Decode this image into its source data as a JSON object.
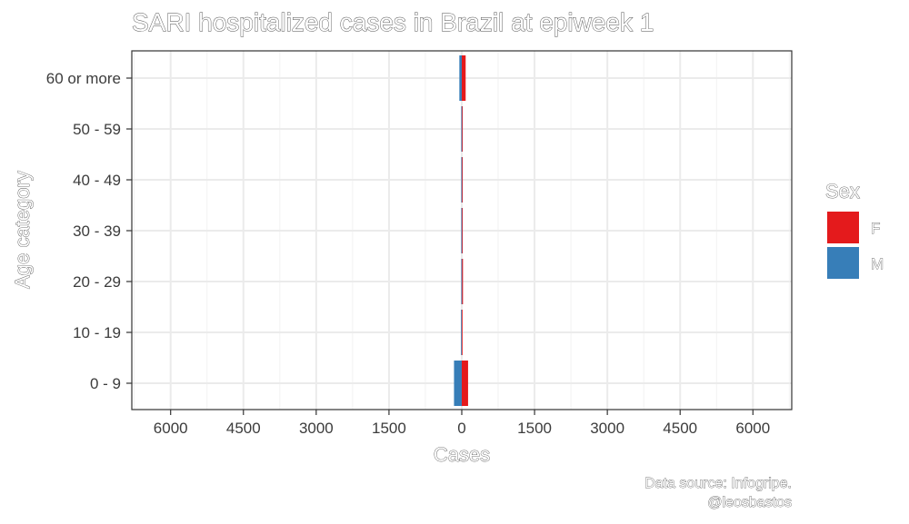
{
  "chart_data": {
    "type": "bar",
    "orientation": "horizontal-pyramid",
    "title": "SARI hospitalized cases in Brazil at epiweek 1",
    "xlabel": "Cases",
    "ylabel": "Age category",
    "categories": [
      "0 - 9",
      "10 - 19",
      "20 - 29",
      "30 - 39",
      "40 - 49",
      "50 - 59",
      "60 or more"
    ],
    "series": [
      {
        "name": "F",
        "color": "#E41A1C",
        "direction": "right",
        "values": [
          130,
          15,
          25,
          20,
          20,
          20,
          80
        ]
      },
      {
        "name": "M",
        "color": "#377EB8",
        "direction": "left",
        "values": [
          160,
          15,
          10,
          10,
          10,
          10,
          50
        ]
      }
    ],
    "x_ticks": [
      -6000,
      -4500,
      -3000,
      -1500,
      0,
      1500,
      3000,
      4500,
      6000
    ],
    "x_tick_labels": [
      "6000",
      "4500",
      "3000",
      "1500",
      "0",
      "1500",
      "3000",
      "4500",
      "6000"
    ],
    "xlim": [
      -6800,
      6800
    ],
    "grid": true,
    "legend": {
      "title": "Sex",
      "placement": "right"
    },
    "caption": [
      "Data source: Infogripe.",
      "@leosbastos"
    ]
  }
}
